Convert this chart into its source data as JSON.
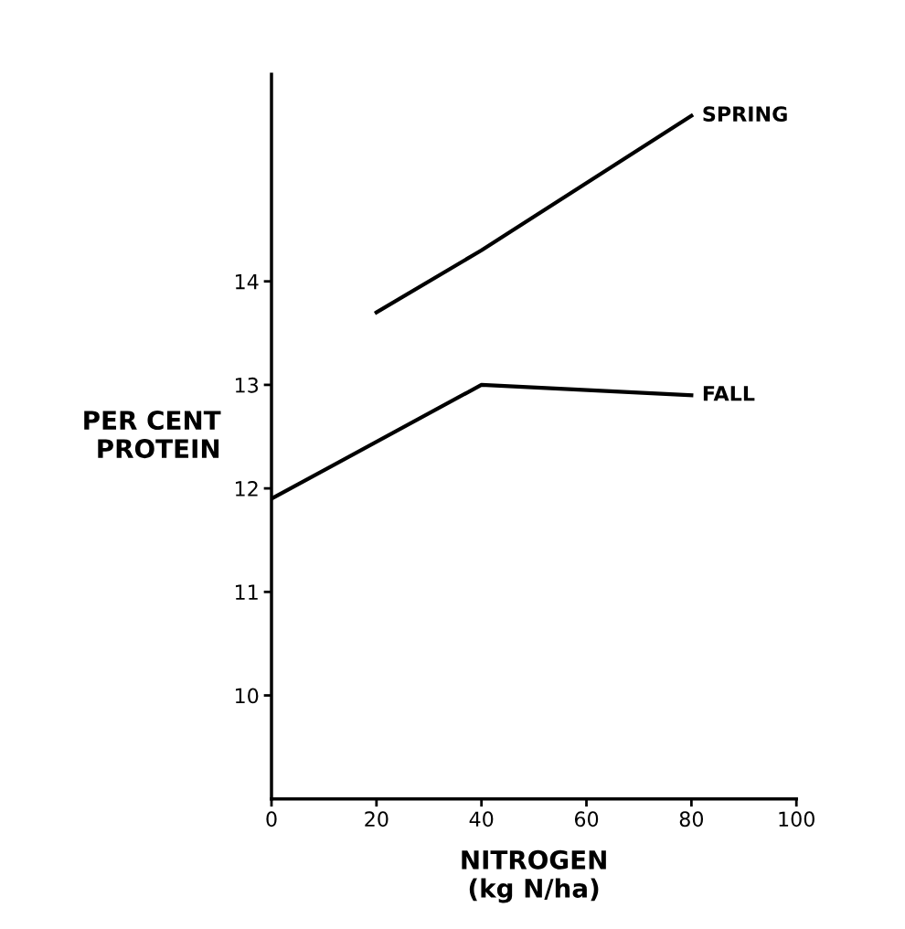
{
  "chart_data": {
    "type": "line",
    "ylabel": "PER CENT\nPROTEIN",
    "xlabel": "NITROGEN\n(kg N/ha)",
    "series": [
      {
        "name": "SPRING",
        "color": "#000000",
        "x": [
          20,
          40,
          80
        ],
        "values": [
          13.7,
          14.3,
          15.6
        ]
      },
      {
        "name": "FALL",
        "color": "#000000",
        "x": [
          0,
          40,
          80
        ],
        "values": [
          11.9,
          13.0,
          12.9
        ]
      }
    ],
    "xlim": [
      0,
      100
    ],
    "xticks": [
      0,
      20,
      40,
      60,
      80,
      100
    ],
    "ylim": [
      9,
      16
    ],
    "yticks": [
      10,
      11,
      12,
      13,
      14
    ],
    "marker": "none",
    "line_style": "solid",
    "grid": false
  }
}
